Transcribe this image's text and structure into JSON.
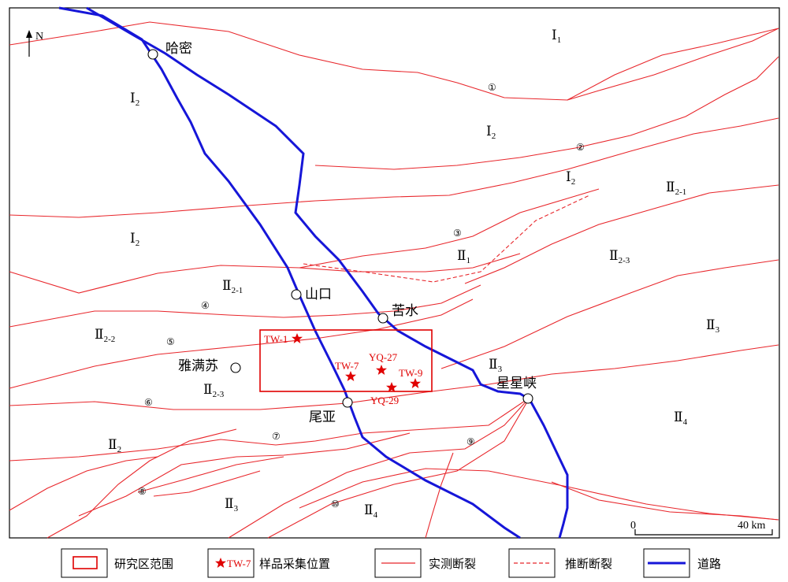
{
  "north_label": "N",
  "zones": [
    {
      "id": "I1-top",
      "main": "Ⅰ",
      "sub": "1"
    },
    {
      "id": "I2-left",
      "main": "Ⅰ",
      "sub": "2"
    },
    {
      "id": "I2-mid",
      "main": "Ⅰ",
      "sub": "2"
    },
    {
      "id": "I2-right",
      "main": "Ⅰ",
      "sub": "2"
    },
    {
      "id": "I2-left2",
      "main": "Ⅰ",
      "sub": "2"
    },
    {
      "id": "II2-1-right",
      "main": "Ⅱ",
      "sub": "2-1"
    },
    {
      "id": "II1",
      "main": "Ⅱ",
      "sub": "1"
    },
    {
      "id": "II2-3-right",
      "main": "Ⅱ",
      "sub": "2-3"
    },
    {
      "id": "II2-1-left",
      "main": "Ⅱ",
      "sub": "2-1"
    },
    {
      "id": "II2-2",
      "main": "Ⅱ",
      "sub": "2-2"
    },
    {
      "id": "II3-right",
      "main": "Ⅱ",
      "sub": "3"
    },
    {
      "id": "II3-center",
      "main": "Ⅱ",
      "sub": "3"
    },
    {
      "id": "II2-3-left",
      "main": "Ⅱ",
      "sub": "2-3"
    },
    {
      "id": "II4-right",
      "main": "Ⅱ",
      "sub": "4"
    },
    {
      "id": "II2-bottom",
      "main": "Ⅱ",
      "sub": "2"
    },
    {
      "id": "II3-bottom",
      "main": "Ⅱ",
      "sub": "3"
    },
    {
      "id": "II4-bottom",
      "main": "Ⅱ",
      "sub": "4"
    }
  ],
  "towns": [
    "哈密",
    "山口",
    "苦水",
    "雅满苏",
    "星星峡",
    "尾亚"
  ],
  "samples": [
    "TW-1",
    "TW-7",
    "YQ-27",
    "TW-9",
    "YQ-29"
  ],
  "fault_numbers": [
    "①",
    "②",
    "③",
    "④",
    "⑤",
    "⑥",
    "⑦",
    "⑧",
    "⑨",
    "⑩"
  ],
  "scale": {
    "start": "0",
    "end": "40 km"
  },
  "legend": {
    "study_area": "研究区范围",
    "sample_symbol": "TW-7",
    "sample_text": "样品采集位置",
    "measured_fault": "实测断裂",
    "inferred_fault": "推断断裂",
    "road": "道路"
  },
  "colors": {
    "fault": "#e8262b",
    "road": "#1616d8",
    "sample": "#e00000",
    "frame": "#000000"
  }
}
